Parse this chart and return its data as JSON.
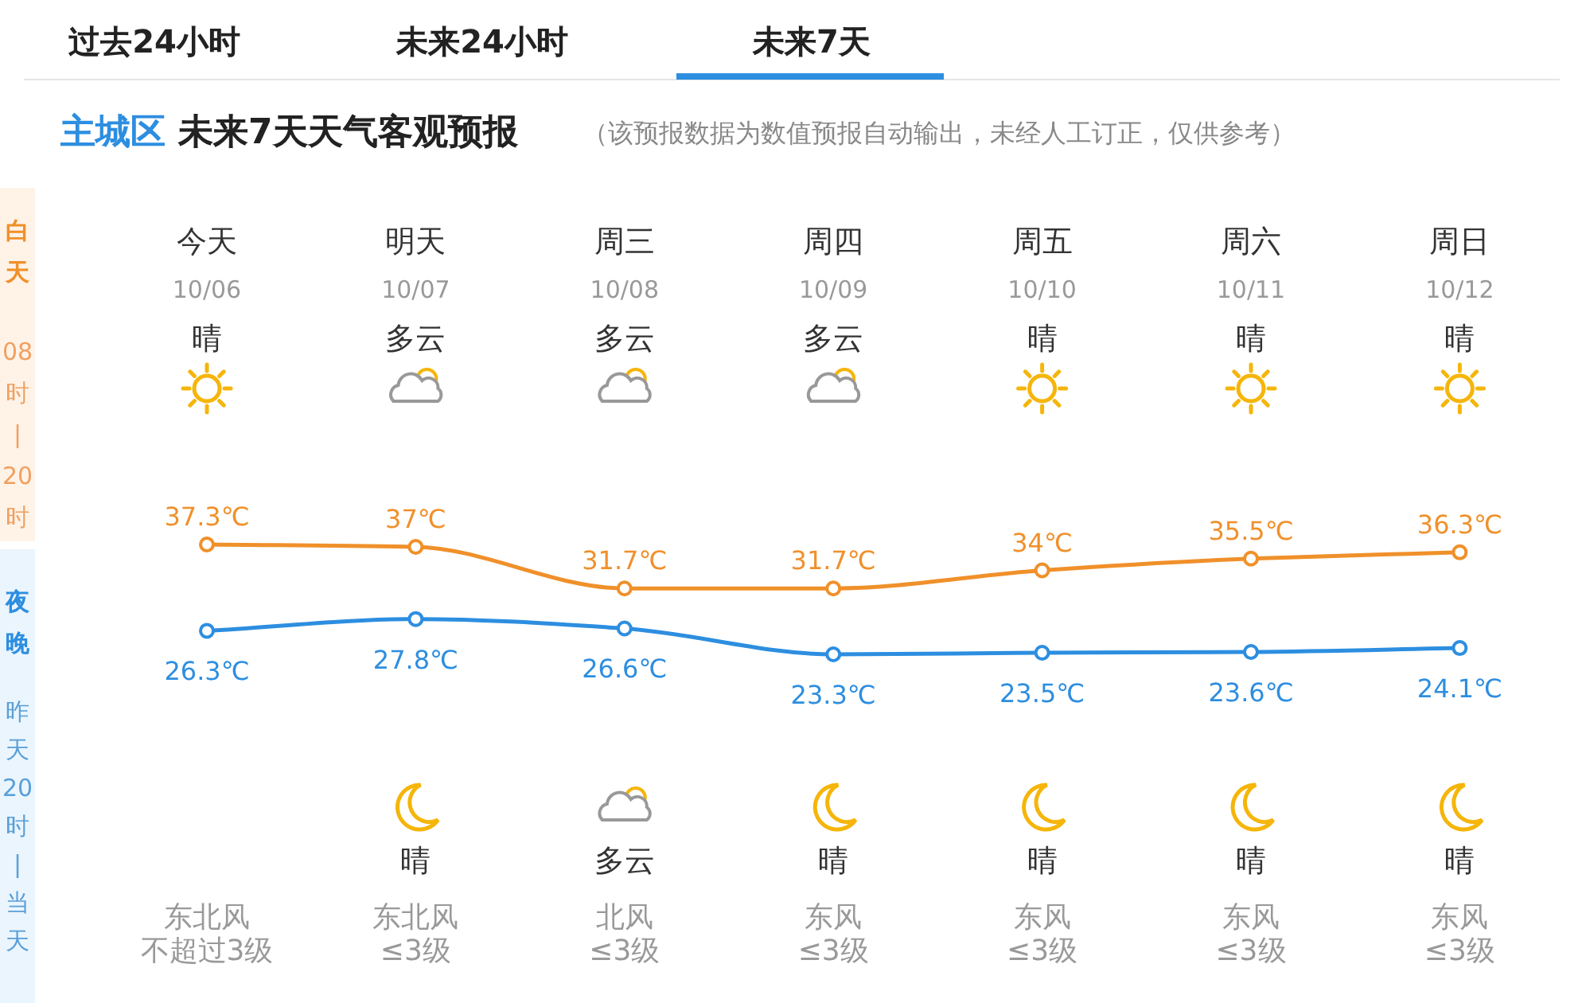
{
  "chart_data": {
    "type": "line",
    "title": "主城区 未来7天天气客观预报",
    "subtitle": "（该预报数据为数值预报自动输出，未经人工订正，仅供参考）",
    "categories": [
      "今天",
      "明天",
      "周三",
      "周四",
      "周五",
      "周六",
      "周日"
    ],
    "series": [
      {
        "color": "#f0902a",
        "values": [
          37.3,
          37,
          31.7,
          31.7,
          34,
          35.5,
          36.3
        ],
        "value_labels": [
          "37.3℃",
          "37℃",
          "31.7℃",
          "31.7℃",
          "34℃",
          "35.5℃",
          "36.3℃"
        ]
      },
      {
        "color": "#2d8ee0",
        "values": [
          26.3,
          27.8,
          26.6,
          23.3,
          23.5,
          23.6,
          24.1
        ],
        "value_labels": [
          "26.3℃",
          "27.8℃",
          "26.6℃",
          "23.3℃",
          "23.5℃",
          "23.6℃",
          "24.1℃"
        ]
      }
    ],
    "marker": "circle",
    "annotations": [
      "过去24小时",
      "未来24小时",
      "未来7天",
      "白天",
      "08时|20时",
      "夜晚",
      "昨天20时|当天",
      "10/06",
      "10/07",
      "10/08",
      "10/09",
      "10/10",
      "10/11",
      "10/12",
      "晴",
      "多云",
      "多云",
      "多云",
      "晴",
      "晴",
      "晴",
      "东北风",
      "东北风",
      "北风",
      "东风",
      "东风",
      "东风",
      "东风",
      "不超过3级",
      "≤3级",
      "≤3级",
      "≤3级",
      "≤3级",
      "≤3级",
      "≤3级",
      "晴",
      "多云",
      "晴",
      "晴",
      "晴",
      "晴"
    ]
  }
}
